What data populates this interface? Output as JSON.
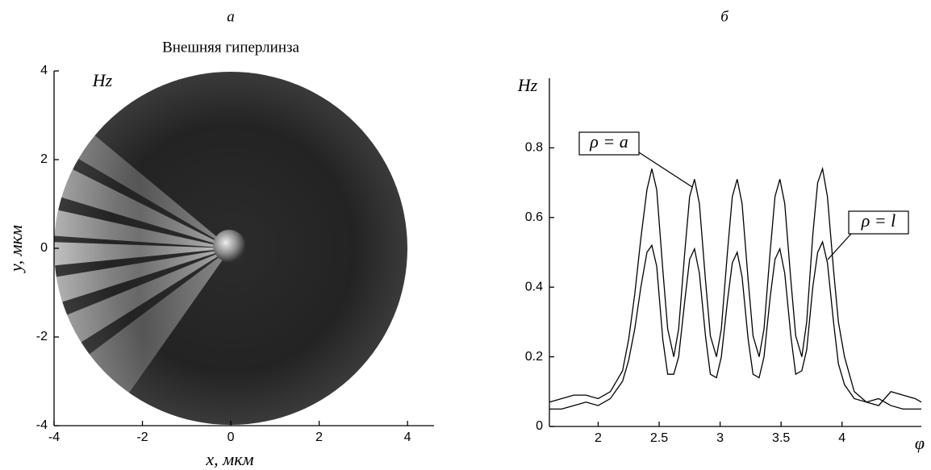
{
  "chart_data": [
    {
      "type": "heatmap",
      "panel": "а",
      "title": "Внешняя гиперлинза",
      "annotation": "Hz",
      "xlabel": "x, мкм",
      "ylabel": "y, мкм",
      "xlim": [
        -4,
        4.6
      ],
      "ylim": [
        -4,
        4
      ],
      "xticks": [
        -4,
        -2,
        0,
        2,
        4
      ],
      "yticks": [
        -4,
        -2,
        0,
        2,
        4
      ]
    },
    {
      "type": "line",
      "panel": "б",
      "xlabel": "φ",
      "ylabel": "Hz",
      "xlim": [
        1.6,
        4.65
      ],
      "ylim": [
        0,
        1
      ],
      "xticks": [
        2,
        2.5,
        3,
        3.5,
        4
      ],
      "yticks": [
        0,
        0.2,
        0.4,
        0.6,
        0.8
      ],
      "x": [
        1.6,
        1.7,
        1.8,
        1.9,
        2.0,
        2.1,
        2.2,
        2.25,
        2.3,
        2.35,
        2.4,
        2.44,
        2.48,
        2.53,
        2.57,
        2.62,
        2.66,
        2.71,
        2.75,
        2.79,
        2.83,
        2.88,
        2.92,
        2.97,
        3.01,
        3.06,
        3.1,
        3.14,
        3.18,
        3.23,
        3.27,
        3.32,
        3.36,
        3.41,
        3.45,
        3.49,
        3.53,
        3.58,
        3.62,
        3.67,
        3.71,
        3.76,
        3.8,
        3.84,
        3.88,
        3.93,
        3.97,
        4.02,
        4.1,
        4.2,
        4.3,
        4.4,
        4.5,
        4.6,
        4.65
      ],
      "series": [
        {
          "name": "ρ = a",
          "color": "#000000",
          "values": [
            0.07,
            0.08,
            0.09,
            0.09,
            0.08,
            0.1,
            0.16,
            0.25,
            0.38,
            0.54,
            0.68,
            0.74,
            0.68,
            0.45,
            0.28,
            0.2,
            0.28,
            0.5,
            0.66,
            0.71,
            0.64,
            0.42,
            0.26,
            0.2,
            0.28,
            0.5,
            0.66,
            0.71,
            0.64,
            0.42,
            0.26,
            0.2,
            0.28,
            0.5,
            0.66,
            0.71,
            0.64,
            0.42,
            0.26,
            0.2,
            0.3,
            0.55,
            0.7,
            0.74,
            0.66,
            0.45,
            0.3,
            0.2,
            0.1,
            0.07,
            0.06,
            0.1,
            0.09,
            0.08,
            0.07
          ]
        },
        {
          "name": "ρ = l",
          "color": "#000000",
          "values": [
            0.05,
            0.05,
            0.06,
            0.07,
            0.06,
            0.08,
            0.13,
            0.19,
            0.28,
            0.4,
            0.5,
            0.52,
            0.46,
            0.25,
            0.15,
            0.15,
            0.2,
            0.36,
            0.48,
            0.51,
            0.44,
            0.26,
            0.15,
            0.14,
            0.2,
            0.36,
            0.47,
            0.5,
            0.43,
            0.25,
            0.15,
            0.14,
            0.2,
            0.37,
            0.48,
            0.51,
            0.44,
            0.26,
            0.15,
            0.16,
            0.22,
            0.4,
            0.5,
            0.53,
            0.47,
            0.3,
            0.18,
            0.12,
            0.08,
            0.07,
            0.08,
            0.06,
            0.05,
            0.05,
            0.05
          ]
        }
      ]
    }
  ]
}
